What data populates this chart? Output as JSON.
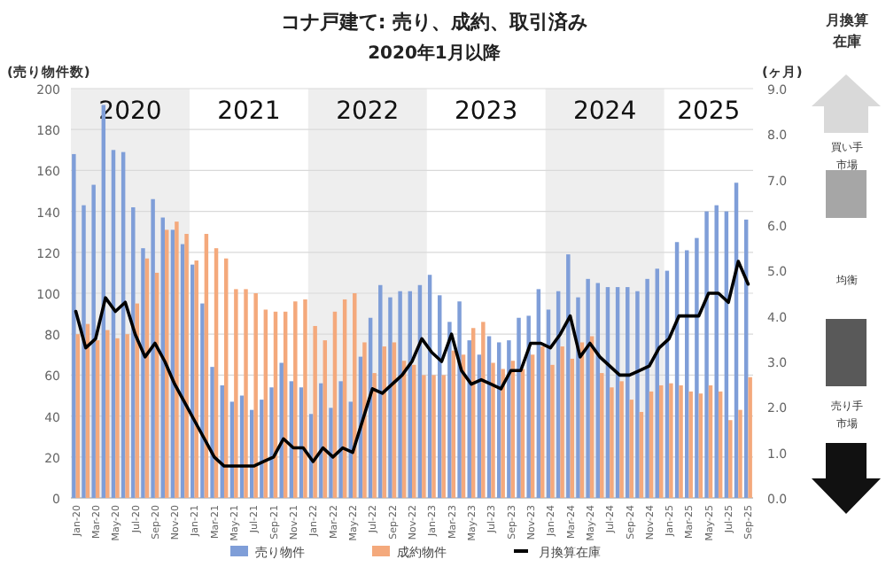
{
  "chart_data": {
    "type": "bar",
    "title": "コナ戸建て: 売り、成約、取引済み",
    "subtitle": "2020年1月以降",
    "ylabel": "(売り物件数)",
    "y2label": "(ヶ月)",
    "categories": [
      "Jan-20",
      null,
      "Mar-20",
      null,
      "May-20",
      null,
      "Jul-20",
      null,
      "Sep-20",
      null,
      "Nov-20",
      null,
      "Jan-21",
      null,
      "Mar-21",
      null,
      "May-21",
      null,
      "Jul-21",
      null,
      "Sep-21",
      null,
      "Nov-21",
      null,
      "Jan-22",
      null,
      "Mar-22",
      null,
      "May-22",
      null,
      "Jul-22",
      null,
      "Sep-22",
      null,
      "Nov-22",
      null,
      "Jan-23",
      null,
      "Mar-23",
      null,
      "May-23",
      null,
      "Jul-23",
      null,
      "Sep-23",
      null,
      "Nov-23",
      null,
      "Jan-24",
      null,
      "Mar-24",
      null,
      "May-24",
      null,
      "Jul-24",
      null,
      "Sep-24",
      null,
      "Nov-24",
      null,
      "Jan-25",
      null,
      "Mar-25",
      null,
      "May-25",
      null,
      "Jul-25",
      null,
      "Sep-25"
    ],
    "series": [
      {
        "name": "売り物件",
        "color": "#7f9ed8",
        "values": [
          168,
          143,
          153,
          192,
          170,
          169,
          142,
          122,
          146,
          137,
          131,
          124,
          114,
          95,
          64,
          55,
          47,
          50,
          43,
          48,
          54,
          66,
          57,
          54,
          41,
          56,
          44,
          57,
          47,
          69,
          88,
          104,
          98,
          101,
          101,
          104,
          109,
          99,
          86,
          96,
          77,
          70,
          79,
          76,
          77,
          88,
          89,
          102,
          92,
          101,
          119,
          98,
          107,
          105,
          103,
          103,
          103,
          101,
          107,
          112,
          111,
          125,
          121,
          127,
          140,
          143,
          140,
          154,
          136
        ]
      },
      {
        "name": "成約物件",
        "color": "#f4a97c",
        "values": [
          80,
          85,
          77,
          82,
          78,
          80,
          95,
          117,
          110,
          131,
          135,
          129,
          116,
          129,
          122,
          117,
          102,
          102,
          100,
          92,
          91,
          91,
          96,
          97,
          84,
          77,
          91,
          97,
          100,
          76,
          61,
          74,
          76,
          67,
          65,
          60,
          60,
          60,
          72,
          70,
          83,
          86,
          66,
          63,
          67,
          63,
          70,
          74,
          65,
          74,
          68,
          76,
          79,
          61,
          54,
          57,
          48,
          42,
          52,
          55,
          56,
          55,
          52,
          51,
          55,
          52,
          38,
          43,
          59
        ]
      },
      {
        "name": "月換算在庫",
        "type": "line",
        "axis": "y2",
        "color": "#000000",
        "values": [
          4.1,
          3.3,
          3.5,
          4.4,
          4.1,
          4.3,
          3.6,
          3.1,
          3.4,
          3.0,
          2.5,
          2.1,
          1.7,
          1.3,
          0.9,
          0.7,
          0.7,
          0.7,
          0.7,
          0.8,
          0.9,
          1.3,
          1.1,
          1.1,
          0.8,
          1.1,
          0.9,
          1.1,
          1.0,
          1.7,
          2.4,
          2.3,
          2.5,
          2.7,
          3.0,
          3.5,
          3.2,
          3.0,
          3.6,
          2.8,
          2.5,
          2.6,
          2.5,
          2.4,
          2.8,
          2.8,
          3.4,
          3.4,
          3.3,
          3.6,
          4.0,
          3.1,
          3.4,
          3.1,
          2.9,
          2.7,
          2.7,
          2.8,
          2.9,
          3.3,
          3.5,
          4.0,
          4.0,
          4.0,
          4.5,
          4.5,
          4.3,
          5.2,
          4.7
        ]
      }
    ],
    "ylim": [
      0,
      200
    ],
    "yticks": [
      0,
      20,
      40,
      60,
      80,
      100,
      120,
      140,
      160,
      180,
      200
    ],
    "y2lim": [
      0,
      9
    ],
    "y2ticks": [
      {
        "value": 0,
        "label": "0.0"
      },
      {
        "value": 1,
        "label": "1.0"
      },
      {
        "value": 2,
        "label": "2.0"
      },
      {
        "value": 3,
        "label": "3.0"
      },
      {
        "value": 4,
        "label": "4.0"
      },
      {
        "value": 5,
        "label": "5.0"
      },
      {
        "value": 6,
        "label": "6.0"
      },
      {
        "value": 7,
        "label": "7.0"
      },
      {
        "value": 8,
        "label": "8.0"
      },
      {
        "value": 9,
        "label": "9.0"
      }
    ],
    "grid": "y",
    "legend": "bottom",
    "bands": [
      {
        "axis": "x",
        "from": "Jan-20",
        "to": "Jan-21",
        "label": "2020",
        "color": "#eeeeee"
      },
      {
        "axis": "x",
        "from": "Jan-22",
        "to": "Jan-23",
        "label": "2022",
        "color": "#eeeeee"
      },
      {
        "axis": "x",
        "from": "Jan-24",
        "to": "Jan-25",
        "label": "2024",
        "color": "#eeeeee"
      }
    ],
    "annotations": [
      "月換算在庫",
      "買い手市場",
      "均衡",
      "売り手市場",
      "2021",
      "2023",
      "2025"
    ]
  }
}
